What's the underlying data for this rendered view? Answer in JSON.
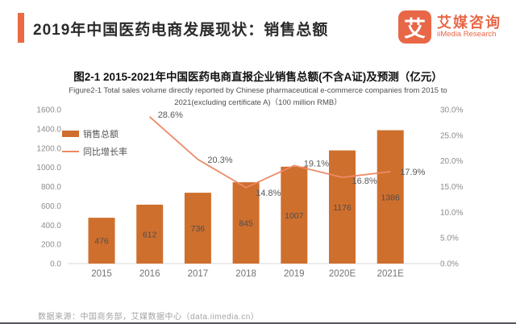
{
  "header": {
    "title": "2019年中国医药电商发展现状：销售总额",
    "logo": {
      "glyph": "艾",
      "brand_cn": "艾媒咨询",
      "brand_en": "iiMedia Research"
    }
  },
  "chart_title": "图2-1 2015-2021年中国医药电商直报企业销售总额(不含A证)及预测（亿元）",
  "chart_subtitle_line1": "Figure2-1 Total sales volume directly reported by Chinese pharmaceutical e-commerce companies from 2015 to",
  "chart_subtitle_line2": "2021(excluding certificate A)（100 million RMB）",
  "legend": {
    "bar_label": "销售总额",
    "line_label": "同比增长率"
  },
  "colors": {
    "bar": "#cf6f2d",
    "line": "#ec8a66",
    "accent": "#ea6a43",
    "logo": "#e86747",
    "tick_label": "#8c8c8c",
    "x_label": "#737373",
    "bar_value_label": "#4d4d4d",
    "line_value_label": "#595959",
    "axis_line": "#d9d9d9"
  },
  "chart_data": {
    "type": "bar",
    "title": "图2-1 2015-2021年中国医药电商直报企业销售总额(不含A证)及预测（亿元）",
    "categories": [
      "2015",
      "2016",
      "2017",
      "2018",
      "2019",
      "2020E",
      "2021E"
    ],
    "series": [
      {
        "name": "销售总额",
        "type": "bar",
        "axis": "left",
        "values": [
          476,
          612,
          736,
          845,
          1007,
          1176,
          1386
        ]
      },
      {
        "name": "同比增长率",
        "type": "line",
        "axis": "right",
        "unit": "%",
        "values": [
          null,
          28.6,
          20.3,
          14.8,
          19.1,
          16.8,
          17.9
        ]
      }
    ],
    "left_axis": {
      "min": 0,
      "max": 1600,
      "step": 200,
      "decimals": 1
    },
    "right_axis": {
      "min": 0,
      "max": 30,
      "step": 5,
      "decimals": 1,
      "suffix": "%"
    },
    "grid": false,
    "legend_position": "top-left-inside"
  },
  "footer": {
    "source": "数据来源：中国商务部，艾媒数据中心（data.iimedia.cn）"
  }
}
